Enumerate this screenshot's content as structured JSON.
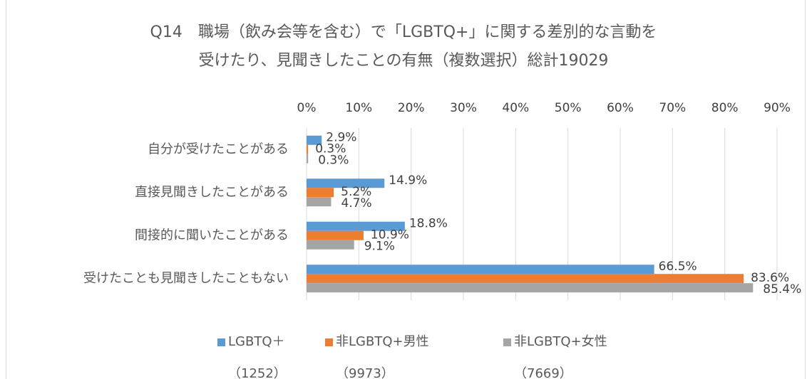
{
  "chart_data": {
    "type": "bar",
    "orientation": "horizontal",
    "title": "Q14　職場（飲み会等を含む）で「LGBTQ+」に関する差別的な言動を\n受けたり、見聞きしたことの有無（複数選択）総計19029",
    "categories": [
      "自分が受けたことがある",
      "直接見聞きしたことがある",
      "間接的に聞いたことがある",
      "受けたことも見聞きしたこともない"
    ],
    "series": [
      {
        "name": "LGBTQ＋\n（1252）",
        "color": "#5b9bd5",
        "values": [
          2.9,
          14.9,
          18.8,
          66.5
        ],
        "value_labels": [
          "2.9%",
          "14.9%",
          "18.8%",
          "66.5%"
        ]
      },
      {
        "name": "非LGBTQ+男性\n（9973）",
        "color": "#ed7d31",
        "values": [
          0.3,
          5.2,
          10.9,
          83.6
        ],
        "value_labels": [
          "0.3%",
          "5.2%",
          "10.9%",
          "83.6%"
        ]
      },
      {
        "name": "非LGBTQ+女性\n（7669）",
        "color": "#a5a5a5",
        "values": [
          0.3,
          4.7,
          9.1,
          85.4
        ],
        "value_labels": [
          "0.3%",
          "4.7%",
          "9.1%",
          "85.4%"
        ]
      }
    ],
    "xlim": [
      0,
      90
    ],
    "xticks": [
      {
        "value": 0,
        "label": "0%"
      },
      {
        "value": 10,
        "label": "10%"
      },
      {
        "value": 20,
        "label": "20%"
      },
      {
        "value": 30,
        "label": "30%"
      },
      {
        "value": 40,
        "label": "40%"
      },
      {
        "value": 50,
        "label": "50%"
      },
      {
        "value": 60,
        "label": "60%"
      },
      {
        "value": 70,
        "label": "70%"
      },
      {
        "value": 80,
        "label": "80%"
      },
      {
        "value": 90,
        "label": "90%"
      }
    ],
    "grid": true,
    "legend": "bottom"
  }
}
